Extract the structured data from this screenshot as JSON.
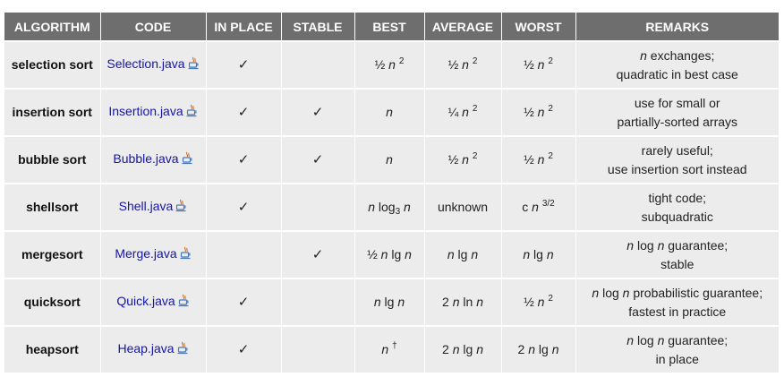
{
  "headers": [
    "ALGORITHM",
    "CODE",
    "IN PLACE",
    "STABLE",
    "BEST",
    "AVERAGE",
    "WORST",
    "REMARKS"
  ],
  "check_mark": "✓",
  "rows": [
    {
      "algorithm": "selection sort",
      "code": "Selection.java",
      "in_place": "✓",
      "stable": "",
      "remarks": [
        "n exchanges;",
        "quadratic in best case"
      ]
    },
    {
      "algorithm": "insertion sort",
      "code": "Insertion.java",
      "in_place": "✓",
      "stable": "✓",
      "remarks": [
        "use for small or",
        "partially-sorted arrays"
      ]
    },
    {
      "algorithm": "bubble sort",
      "code": "Bubble.java",
      "in_place": "✓",
      "stable": "✓",
      "remarks": [
        "rarely useful;",
        "use insertion sort instead"
      ]
    },
    {
      "algorithm": "shellsort",
      "code": "Shell.java",
      "in_place": "✓",
      "stable": "",
      "remarks": [
        "tight code;",
        "subquadratic"
      ]
    },
    {
      "algorithm": "mergesort",
      "code": "Merge.java",
      "in_place": "",
      "stable": "✓",
      "remarks": [
        "n log n guarantee;",
        "stable"
      ]
    },
    {
      "algorithm": "quicksort",
      "code": "Quick.java",
      "in_place": "✓",
      "stable": "",
      "remarks": [
        "n log n probabilistic guarantee;",
        "fastest in practice"
      ]
    },
    {
      "algorithm": "heapsort",
      "code": "Heap.java",
      "in_place": "✓",
      "stable": "",
      "remarks": [
        "n log n guarantee;",
        "in place"
      ]
    }
  ],
  "complexity": {
    "selection": {
      "best_coef": "½",
      "best_var": "n",
      "best_exp": "2",
      "avg_coef": "½",
      "avg_var": "n",
      "avg_exp": "2",
      "worst_coef": "½",
      "worst_var": "n",
      "worst_exp": "2"
    },
    "insertion": {
      "best_var": "n",
      "avg_coef": "¼",
      "avg_var": "n",
      "avg_exp": "2",
      "worst_coef": "½",
      "worst_var": "n",
      "worst_exp": "2"
    },
    "bubble": {
      "best_var": "n",
      "avg_coef": "½",
      "avg_var": "n",
      "avg_exp": "2",
      "worst_coef": "½",
      "worst_var": "n",
      "worst_exp": "2"
    },
    "shell": {
      "best_n": "n",
      "best_log": "log",
      "best_base": "3",
      "best_n2": "n",
      "average": "unknown",
      "worst_c": "c",
      "worst_n": "n",
      "worst_exp": "3/2"
    },
    "merge": {
      "best_coef": "½",
      "best_n": "n",
      "best_lg": "lg",
      "best_n2": "n",
      "avg_n": "n",
      "avg_lg": "lg",
      "avg_n2": "n",
      "worst_n": "n",
      "worst_lg": "lg",
      "worst_n2": "n"
    },
    "quick": {
      "best_n": "n",
      "best_lg": "lg",
      "best_n2": "n",
      "avg_coef": "2",
      "avg_n": "n",
      "avg_ln": "ln",
      "avg_n2": "n",
      "worst_coef": "½",
      "worst_var": "n",
      "worst_exp": "2"
    },
    "heap": {
      "best_var": "n",
      "best_dagger": "†",
      "avg_coef": "2",
      "avg_n": "n",
      "avg_lg": "lg",
      "avg_n2": "n",
      "worst_coef": "2",
      "worst_n": "n",
      "worst_lg": "lg",
      "worst_n2": "n"
    }
  },
  "icon": "java-cup-icon"
}
